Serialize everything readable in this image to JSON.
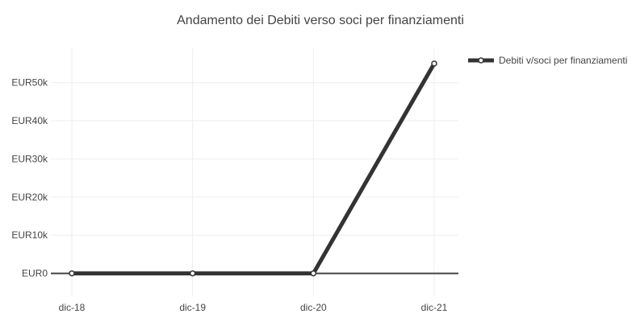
{
  "chart_data": {
    "type": "line",
    "title": "Andamento dei Debiti verso soci per finanziamenti",
    "xlabel": "",
    "ylabel": "",
    "categories": [
      "dic-18",
      "dic-19",
      "dic-20",
      "dic-21"
    ],
    "series": [
      {
        "name": "Debiti v/soci per finanziamenti",
        "values": [
          0,
          0,
          0,
          55000
        ],
        "color": "#333333"
      }
    ],
    "ylim": [
      -6000,
      59000
    ],
    "yticks": [
      0,
      10000,
      20000,
      30000,
      40000,
      50000
    ],
    "ytick_labels": [
      "EUR0",
      "EUR10k",
      "EUR20k",
      "EUR30k",
      "EUR40k",
      "EUR50k"
    ],
    "grid": true,
    "legend_position": "top-right"
  }
}
